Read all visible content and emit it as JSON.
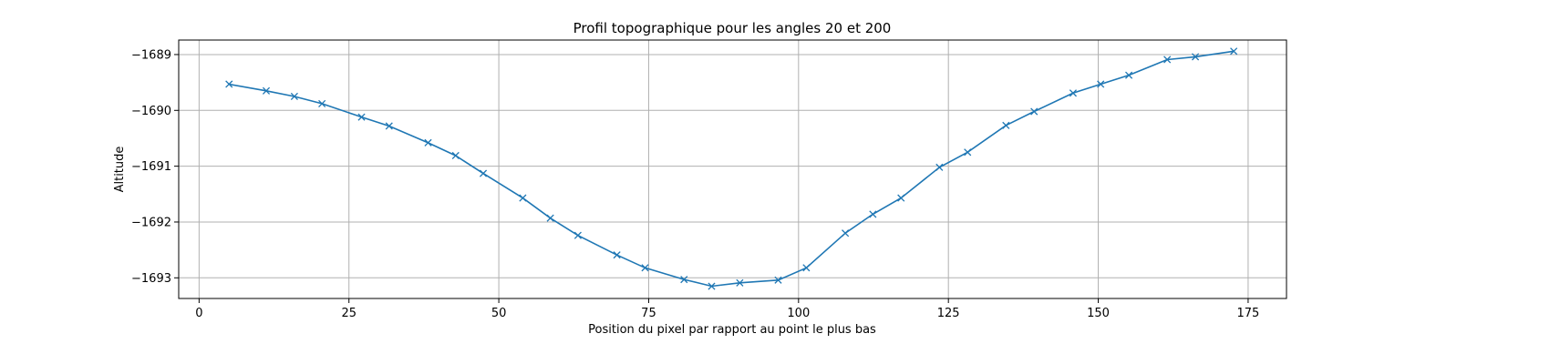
{
  "chart_data": {
    "type": "line",
    "title": "Profil topographique pour les angles 20 et 200",
    "xlabel": "Position du pixel par rapport au point le plus bas",
    "ylabel": "Altitude",
    "xlim": [
      -3.4,
      181.4
    ],
    "ylim": [
      -1693.37,
      -1688.74
    ],
    "xticks": [
      0,
      25,
      50,
      75,
      100,
      125,
      150,
      175
    ],
    "xtick_labels": [
      "0",
      "25",
      "50",
      "75",
      "100",
      "125",
      "150",
      "175"
    ],
    "yticks": [
      -1689,
      -1690,
      -1691,
      -1692,
      -1693
    ],
    "ytick_labels": [
      "−1689",
      "−1690",
      "−1691",
      "−1692",
      "−1693"
    ],
    "grid": true,
    "marker": "x",
    "color": "#1f77b4",
    "series": [
      {
        "x": [
          5.0,
          11.2,
          15.9,
          20.5,
          27.1,
          31.7,
          38.2,
          42.8,
          47.4,
          54.0,
          58.6,
          63.2,
          69.7,
          74.4,
          80.9,
          85.5,
          90.2,
          96.6,
          101.3,
          107.8,
          112.4,
          117.1,
          123.5,
          128.2,
          134.6,
          139.3,
          145.8,
          150.4,
          155.1,
          161.5,
          166.2,
          172.6
        ],
        "y": [
          -1689.53,
          -1689.65,
          -1689.75,
          -1689.88,
          -1690.12,
          -1690.28,
          -1690.58,
          -1690.81,
          -1691.13,
          -1691.57,
          -1691.93,
          -1692.24,
          -1692.59,
          -1692.82,
          -1693.03,
          -1693.15,
          -1693.09,
          -1693.04,
          -1692.82,
          -1692.2,
          -1691.86,
          -1691.57,
          -1691.02,
          -1690.75,
          -1690.27,
          -1690.02,
          -1689.69,
          -1689.53,
          -1689.37,
          -1689.09,
          -1689.04,
          -1688.94
        ]
      }
    ]
  }
}
